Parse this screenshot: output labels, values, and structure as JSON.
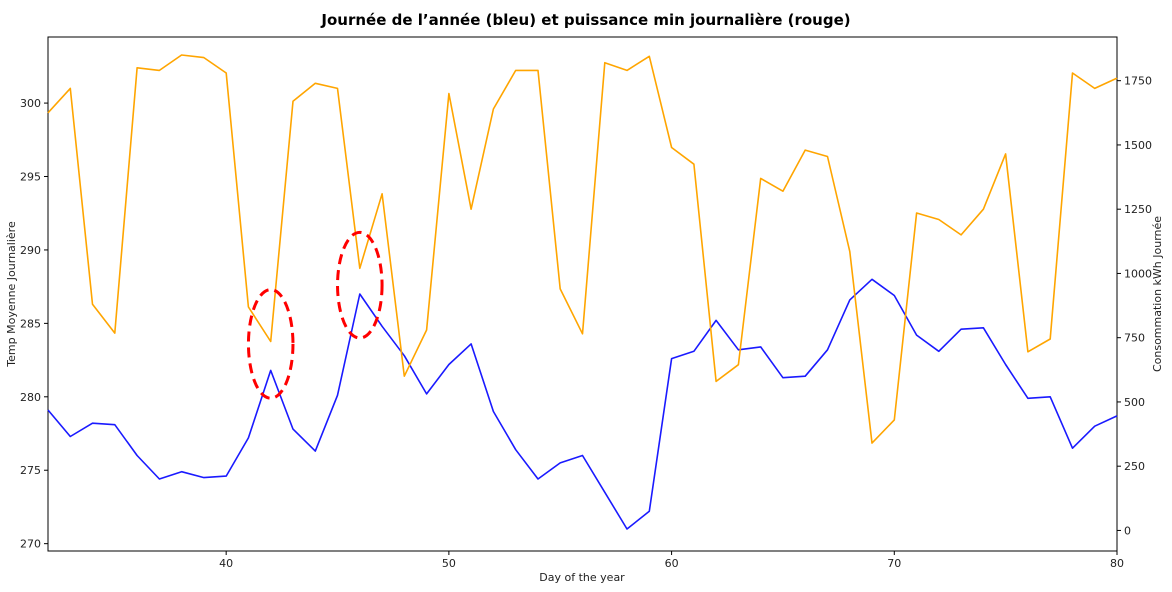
{
  "chart_data": {
    "type": "line",
    "title": "Journée de l’année (bleu) et puissance min journalière (rouge)",
    "xlabel": "Day of the year",
    "ylabel_left": "Temp Moyenne Journalière",
    "ylabel_right": "Consommation kWh Journée",
    "xlim": [
      32,
      80
    ],
    "ylim_left": [
      269.5,
      304.5
    ],
    "ylim_right": [
      -80,
      1920
    ],
    "xticks": [
      "40",
      "50",
      "60",
      "70",
      "80"
    ],
    "yticks_left": [
      "270",
      "275",
      "280",
      "285",
      "290",
      "295",
      "300"
    ],
    "yticks_right": [
      "0",
      "250",
      "500",
      "750",
      "1000",
      "1250",
      "1500",
      "1750"
    ],
    "grid": false,
    "series": [
      {
        "color": "#1a1aff",
        "axis": "left",
        "x": [
          32,
          33,
          34,
          35,
          36,
          37,
          38,
          39,
          40,
          41,
          42,
          43,
          44,
          45,
          46,
          47,
          48,
          49,
          50,
          51,
          52,
          53,
          54,
          55,
          56,
          57,
          58,
          59,
          60,
          61,
          62,
          63,
          64,
          65,
          66,
          67,
          68,
          69,
          70,
          71,
          72,
          73,
          74,
          75,
          76,
          77,
          78,
          79,
          80
        ],
        "values": [
          279.1,
          277.3,
          278.2,
          278.1,
          276.0,
          274.4,
          274.9,
          274.5,
          274.6,
          277.2,
          281.8,
          277.8,
          276.3,
          280.1,
          287.0,
          284.8,
          282.8,
          280.2,
          282.2,
          283.6,
          279.0,
          276.4,
          274.4,
          275.5,
          276.0,
          273.5,
          271.0,
          272.2,
          282.6,
          283.1,
          285.2,
          283.2,
          283.4,
          281.3,
          281.4,
          283.2,
          286.6,
          288.0,
          286.9,
          284.2,
          283.1,
          284.6,
          284.7,
          282.2,
          279.9,
          280.0,
          276.5,
          278.0,
          278.7
        ]
      },
      {
        "color": "#ffa500",
        "axis": "right",
        "x": [
          32,
          33,
          34,
          35,
          36,
          37,
          38,
          39,
          40,
          41,
          42,
          43,
          44,
          45,
          46,
          47,
          48,
          49,
          50,
          51,
          52,
          53,
          54,
          55,
          56,
          57,
          58,
          59,
          60,
          61,
          62,
          63,
          64,
          65,
          66,
          67,
          68,
          69,
          70,
          71,
          72,
          73,
          74,
          75,
          76,
          77,
          78,
          79,
          80
        ],
        "values": [
          1625,
          1720,
          880,
          768,
          1800,
          1790,
          1850,
          1840,
          1780,
          870,
          735,
          1670,
          1740,
          1720,
          1020,
          1310,
          600,
          780,
          1700,
          1250,
          1640,
          1790,
          1790,
          940,
          765,
          1820,
          1790,
          1845,
          1490,
          1425,
          580,
          645,
          1370,
          1320,
          1480,
          1455,
          1085,
          340,
          430,
          1235,
          1210,
          1150,
          1250,
          1465,
          695,
          745,
          1780,
          1720,
          1760
        ]
      }
    ],
    "annotations": [
      {
        "type": "dashed-ellipse",
        "color": "#ff0000",
        "cx": 42,
        "cy": 283.6,
        "rx": 1.0,
        "ry": 3.7
      },
      {
        "type": "dashed-ellipse",
        "color": "#ff0000",
        "cx": 46,
        "cy": 287.6,
        "rx": 1.0,
        "ry": 3.6
      }
    ]
  }
}
